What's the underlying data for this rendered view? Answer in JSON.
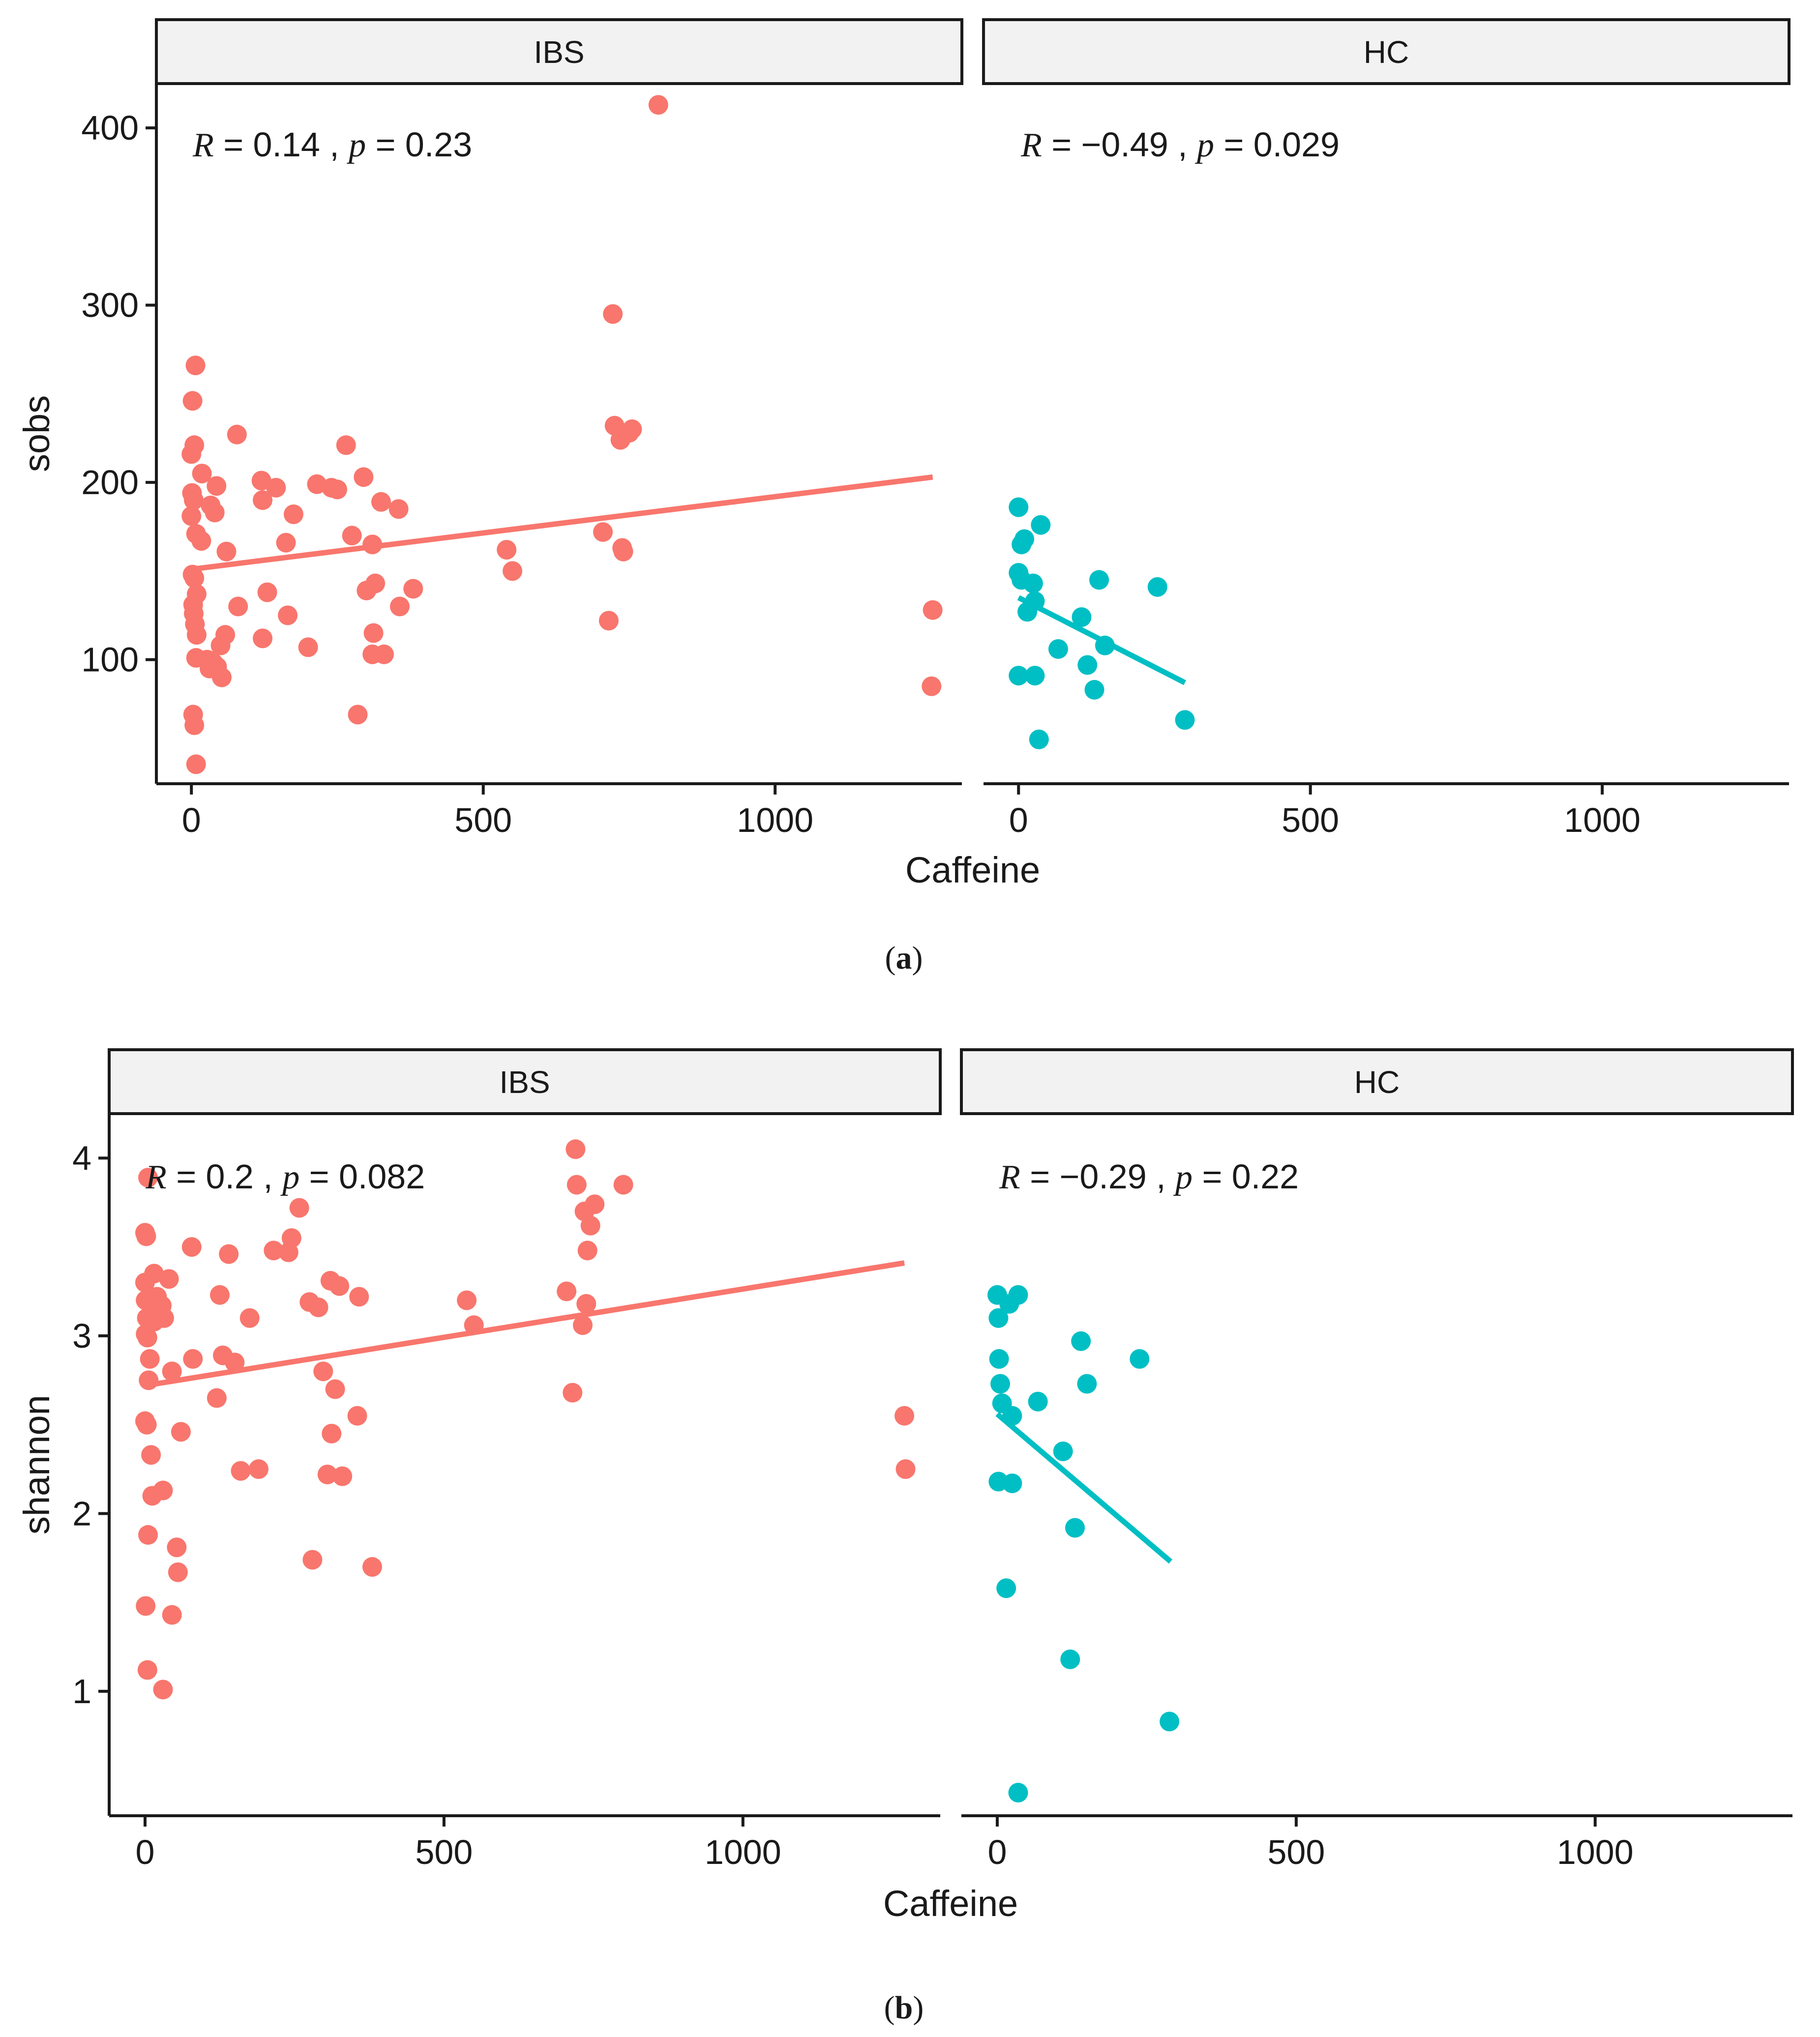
{
  "colors": {
    "ibs": "#F8766D",
    "hc": "#00BFC4",
    "strip_fill": "#F2F2F2",
    "axis": "#1a1a1a"
  },
  "chart_data": [
    {
      "type": "scatter",
      "caption": "a",
      "xlabel": "Caffeine",
      "ylabel": "sobs",
      "xlim": [
        -60,
        1320
      ],
      "ylim": [
        30,
        425
      ],
      "xticks": [
        0,
        500,
        1000
      ],
      "xtick_labels": [
        "0",
        "500",
        "1000"
      ],
      "yticks": [
        100,
        200,
        300,
        400
      ],
      "ytick_labels": [
        "100",
        "200",
        "300",
        "400"
      ],
      "facets": [
        {
          "strip": "IBS",
          "color_key": "ibs",
          "stat": {
            "r_sym": "R",
            "r_val": "= 0.14 ,",
            "p_sym": "p",
            "p_val": "= 0.23"
          },
          "fit": {
            "x": [
              0,
              1270
            ],
            "y": [
              151,
              203
            ]
          },
          "points": [
            [
              2,
              246
            ],
            [
              7,
              266
            ],
            [
              5,
              221
            ],
            [
              0,
              216
            ],
            [
              1,
              194
            ],
            [
              4,
              190
            ],
            [
              0,
              181
            ],
            [
              8,
              171
            ],
            [
              17,
              167
            ],
            [
              2,
              148
            ],
            [
              5,
              146
            ],
            [
              9,
              137
            ],
            [
              3,
              131
            ],
            [
              4,
              126
            ],
            [
              6,
              120
            ],
            [
              9,
              114
            ],
            [
              8,
              101
            ],
            [
              3,
              69
            ],
            [
              5,
              63
            ],
            [
              8,
              41
            ],
            [
              18,
              205
            ],
            [
              33,
              187
            ],
            [
              40,
              183
            ],
            [
              43,
              198
            ],
            [
              27,
              100
            ],
            [
              31,
              95
            ],
            [
              38,
              98
            ],
            [
              44,
              96
            ],
            [
              50,
              108
            ],
            [
              52,
              90
            ],
            [
              58,
              114
            ],
            [
              60,
              161
            ],
            [
              78,
              227
            ],
            [
              80,
              130
            ],
            [
              120,
              201
            ],
            [
              122,
              190
            ],
            [
              122,
              112
            ],
            [
              130,
              138
            ],
            [
              145,
              197
            ],
            [
              162,
              166
            ],
            [
              165,
              125
            ],
            [
              175,
              182
            ],
            [
              200,
              107
            ],
            [
              215,
              199
            ],
            [
              240,
              197
            ],
            [
              250,
              196
            ],
            [
              265,
              221
            ],
            [
              275,
              170
            ],
            [
              285,
              69
            ],
            [
              295,
              203
            ],
            [
              300,
              139
            ],
            [
              310,
              103
            ],
            [
              310,
              165
            ],
            [
              312,
              115
            ],
            [
              315,
              143
            ],
            [
              325,
              189
            ],
            [
              330,
              103
            ],
            [
              355,
              185
            ],
            [
              357,
              130
            ],
            [
              380,
              140
            ],
            [
              540,
              162
            ],
            [
              550,
              150
            ],
            [
              705,
              172
            ],
            [
              715,
              122
            ],
            [
              722,
              295
            ],
            [
              725,
              232
            ],
            [
              735,
              224
            ],
            [
              738,
              163
            ],
            [
              740,
              161
            ],
            [
              750,
              228
            ],
            [
              755,
              230
            ],
            [
              800,
              413
            ],
            [
              1270,
              128
            ],
            [
              1268,
              85
            ]
          ]
        },
        {
          "strip": "HC",
          "color_key": "hc",
          "stat": {
            "r_sym": "R",
            "r_val": "= −0.49 ,",
            "p_sym": "p",
            "p_val": "= 0.029"
          },
          "fit": {
            "x": [
              0,
              285
            ],
            "y": [
              135,
              87
            ]
          },
          "points": [
            [
              0,
              186
            ],
            [
              5,
              165
            ],
            [
              10,
              168
            ],
            [
              0,
              149
            ],
            [
              5,
              145
            ],
            [
              25,
              143
            ],
            [
              28,
              133
            ],
            [
              15,
              127
            ],
            [
              38,
              176
            ],
            [
              0,
              91
            ],
            [
              28,
              91
            ],
            [
              35,
              55
            ],
            [
              68,
              106
            ],
            [
              108,
              124
            ],
            [
              118,
              97
            ],
            [
              130,
              83
            ],
            [
              138,
              145
            ],
            [
              148,
              108
            ],
            [
              238,
              141
            ],
            [
              285,
              66
            ]
          ]
        }
      ]
    },
    {
      "type": "scatter",
      "caption": "b",
      "xlabel": "Caffeine",
      "ylabel": "shannon",
      "xlim": [
        -60,
        1330
      ],
      "ylim": [
        0.3,
        4.25
      ],
      "xticks": [
        0,
        500,
        1000
      ],
      "xtick_labels": [
        "0",
        "500",
        "1000"
      ],
      "yticks": [
        1,
        2,
        3,
        4
      ],
      "ytick_labels": [
        "1",
        "2",
        "3",
        "4"
      ],
      "facets": [
        {
          "strip": "IBS",
          "color_key": "ibs",
          "stat": {
            "r_sym": "R",
            "r_val": "= 0.2 ,",
            "p_sym": "p",
            "p_val": "= 0.082"
          },
          "fit": {
            "x": [
              0,
              1270
            ],
            "y": [
              2.72,
              3.41
            ]
          },
          "points": [
            [
              0,
              3.58
            ],
            [
              2,
              3.56
            ],
            [
              5,
              3.89
            ],
            [
              0,
              3.3
            ],
            [
              1,
              3.2
            ],
            [
              3,
              3.1
            ],
            [
              1,
              3.01
            ],
            [
              4,
              2.99
            ],
            [
              6,
              2.75
            ],
            [
              0,
              2.52
            ],
            [
              3,
              2.5
            ],
            [
              8,
              2.87
            ],
            [
              10,
              2.33
            ],
            [
              12,
              2.1
            ],
            [
              5,
              1.88
            ],
            [
              1,
              1.48
            ],
            [
              4,
              1.12
            ],
            [
              15,
              3.35
            ],
            [
              20,
              3.22
            ],
            [
              23,
              3.18
            ],
            [
              15,
              3.08
            ],
            [
              32,
              3.1
            ],
            [
              40,
              3.32
            ],
            [
              28,
              3.17
            ],
            [
              30,
              2.13
            ],
            [
              45,
              2.8
            ],
            [
              45,
              1.43
            ],
            [
              53,
              1.81
            ],
            [
              55,
              1.67
            ],
            [
              60,
              2.46
            ],
            [
              78,
              3.5
            ],
            [
              80,
              2.87
            ],
            [
              125,
              3.23
            ],
            [
              130,
              2.89
            ],
            [
              120,
              2.65
            ],
            [
              140,
              3.46
            ],
            [
              150,
              2.85
            ],
            [
              160,
              2.24
            ],
            [
              175,
              3.1
            ],
            [
              190,
              2.25
            ],
            [
              215,
              3.48
            ],
            [
              240,
              3.47
            ],
            [
              245,
              3.55
            ],
            [
              258,
              3.72
            ],
            [
              275,
              3.19
            ],
            [
              280,
              1.74
            ],
            [
              290,
              3.16
            ],
            [
              298,
              2.8
            ],
            [
              305,
              2.22
            ],
            [
              310,
              3.31
            ],
            [
              312,
              2.45
            ],
            [
              318,
              2.7
            ],
            [
              325,
              3.28
            ],
            [
              330,
              2.21
            ],
            [
              355,
              2.55
            ],
            [
              358,
              3.22
            ],
            [
              380,
              1.7
            ],
            [
              538,
              3.2
            ],
            [
              550,
              3.06
            ],
            [
              705,
              3.25
            ],
            [
              715,
              2.68
            ],
            [
              720,
              4.05
            ],
            [
              722,
              3.85
            ],
            [
              732,
              3.06
            ],
            [
              735,
              3.7
            ],
            [
              738,
              3.18
            ],
            [
              740,
              3.48
            ],
            [
              745,
              3.62
            ],
            [
              752,
              3.74
            ],
            [
              800,
              3.85
            ],
            [
              1270,
              2.55
            ],
            [
              1272,
              2.25
            ],
            [
              30,
              1.01
            ]
          ]
        },
        {
          "strip": "HC",
          "color_key": "hc",
          "stat": {
            "r_sym": "R",
            "r_val": "= −0.29 ,",
            "p_sym": "p",
            "p_val": "= 0.22"
          },
          "fit": {
            "x": [
              0,
              290
            ],
            "y": [
              2.56,
              1.73
            ]
          },
          "points": [
            [
              0,
              3.23
            ],
            [
              2,
              3.1
            ],
            [
              3,
              2.87
            ],
            [
              5,
              2.73
            ],
            [
              8,
              2.62
            ],
            [
              20,
              3.18
            ],
            [
              35,
              3.23
            ],
            [
              25,
              2.55
            ],
            [
              2,
              2.18
            ],
            [
              25,
              2.17
            ],
            [
              15,
              1.58
            ],
            [
              35,
              0.43
            ],
            [
              68,
              2.63
            ],
            [
              110,
              2.35
            ],
            [
              122,
              1.18
            ],
            [
              130,
              1.92
            ],
            [
              140,
              2.97
            ],
            [
              150,
              2.73
            ],
            [
              238,
              2.87
            ],
            [
              288,
              0.83
            ]
          ]
        }
      ]
    }
  ]
}
